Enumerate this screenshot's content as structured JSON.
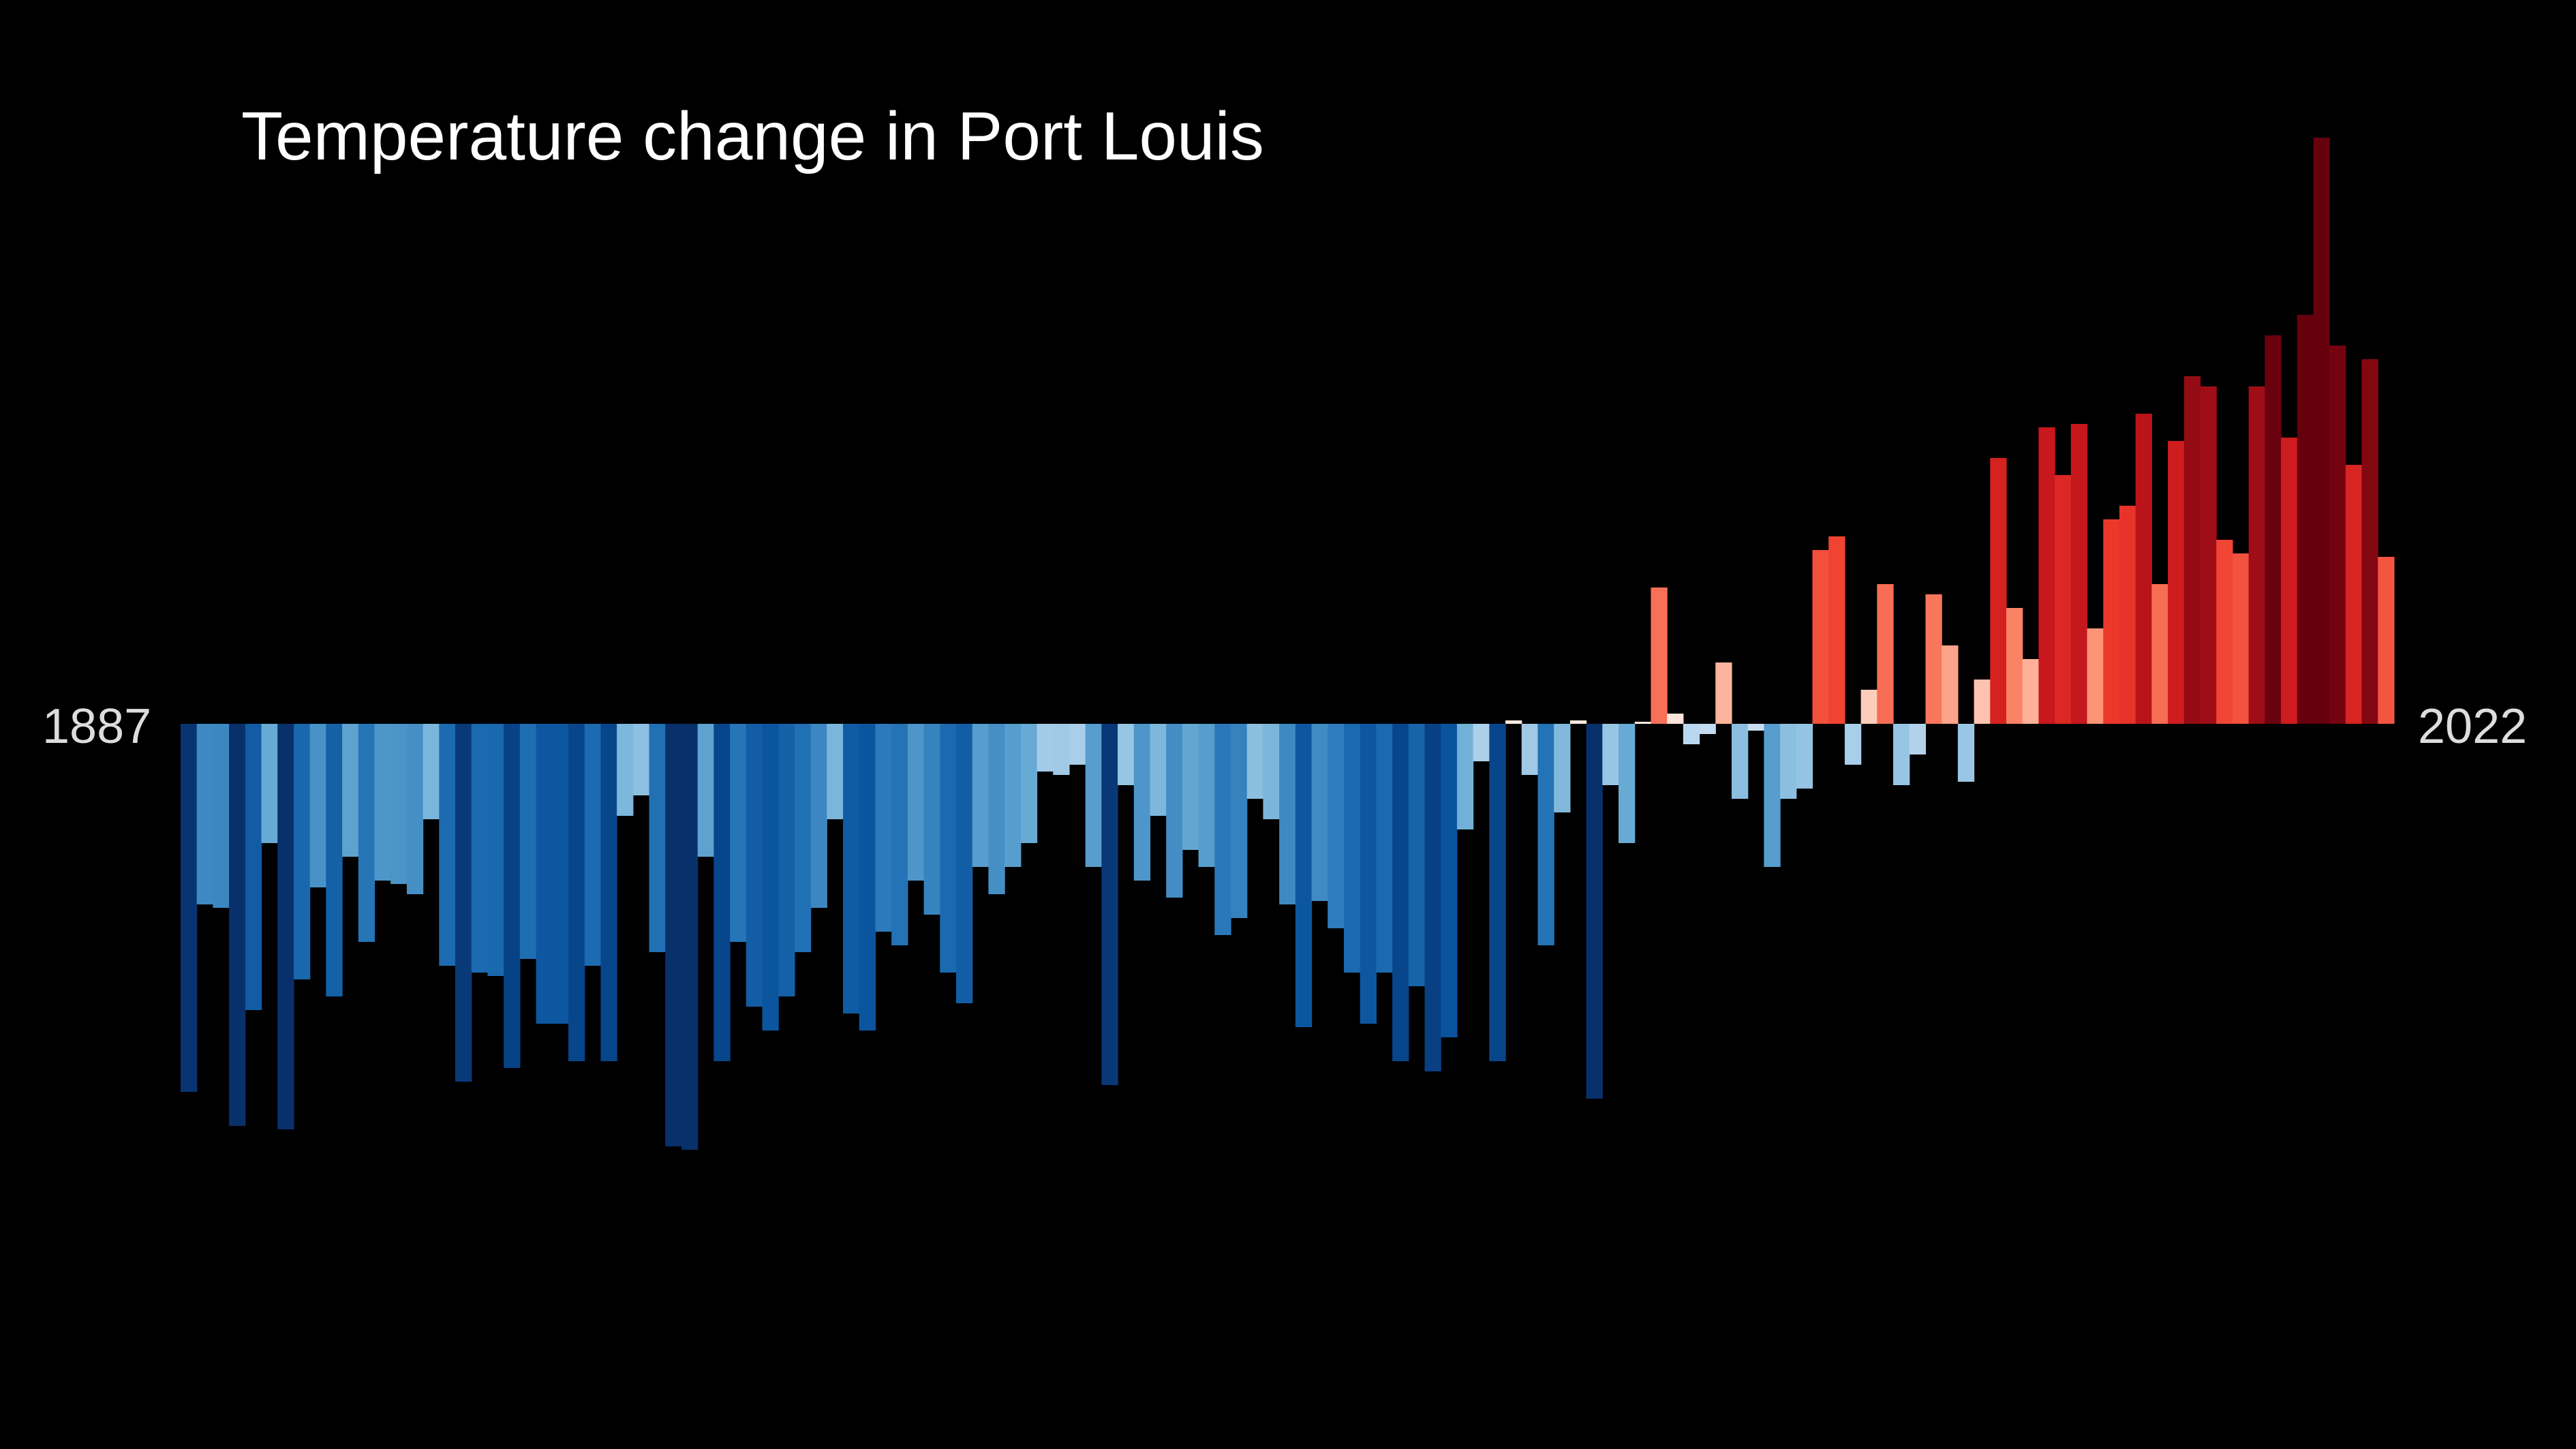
{
  "chart_data": {
    "type": "bar",
    "title": "Temperature change in Port Louis",
    "start_year_label": "1887",
    "end_year_label": "2022",
    "x_start": 1887,
    "x_end": 2022,
    "ylim": [
      -1.2,
      1.7
    ],
    "values": [
      -1.08,
      -0.53,
      -0.54,
      -1.18,
      -0.84,
      -0.35,
      -1.19,
      -0.75,
      -0.48,
      -0.8,
      -0.39,
      -0.64,
      -0.46,
      -0.47,
      -0.5,
      -0.28,
      -0.71,
      -1.05,
      -0.73,
      -0.74,
      -1.01,
      -0.69,
      -0.88,
      -0.88,
      -0.99,
      -0.71,
      -0.99,
      -0.27,
      -0.21,
      -0.67,
      -1.24,
      -1.25,
      -0.39,
      -0.99,
      -0.64,
      -0.83,
      -0.9,
      -0.8,
      -0.67,
      -0.54,
      -0.28,
      -0.85,
      -0.9,
      -0.61,
      -0.65,
      -0.46,
      -0.56,
      -0.73,
      -0.82,
      -0.42,
      -0.5,
      -0.42,
      -0.35,
      -0.14,
      -0.15,
      -0.12,
      -0.42,
      -1.06,
      -0.18,
      -0.46,
      -0.27,
      -0.51,
      -0.37,
      -0.42,
      -0.62,
      -0.57,
      -0.22,
      -0.28,
      -0.53,
      -0.89,
      -0.52,
      -0.6,
      -0.73,
      -0.88,
      -0.73,
      -0.99,
      -0.77,
      -1.02,
      -0.92,
      -0.31,
      -0.11,
      -0.99,
      0.01,
      -0.15,
      -0.65,
      -0.26,
      0.01,
      -1.1,
      -0.18,
      -0.35,
      0.0,
      0.4,
      0.03,
      -0.06,
      -0.03,
      0.18,
      -0.22,
      -0.02,
      -0.42,
      -0.22,
      -0.19,
      0.51,
      0.55,
      -0.12,
      0.1,
      0.41,
      -0.18,
      -0.09,
      0.38,
      0.23,
      -0.17,
      0.13,
      0.78,
      0.34,
      0.19,
      0.87,
      0.73,
      0.88,
      0.28,
      0.6,
      0.64,
      0.91,
      0.41,
      0.83,
      1.02,
      0.99,
      0.54,
      0.5,
      0.99,
      1.14,
      0.84,
      1.2,
      1.72,
      1.11,
      0.76,
      1.07,
      0.49
    ]
  }
}
